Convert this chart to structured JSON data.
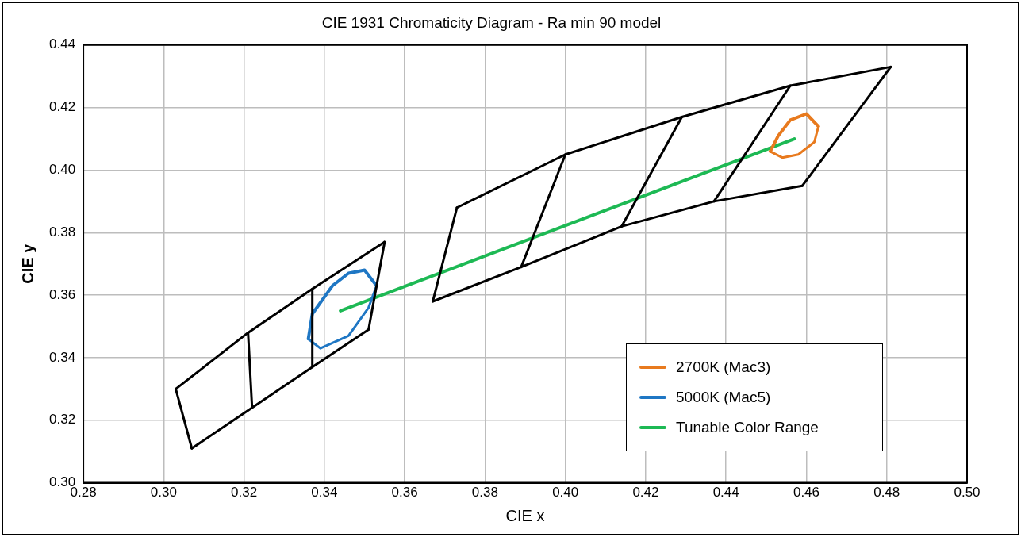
{
  "chart_data": {
    "type": "line",
    "title": "CIE 1931 Chromaticity Diagram - Ra min 90 model",
    "xlabel": "CIE x",
    "ylabel": "CIE y",
    "xlim": [
      0.28,
      0.5
    ],
    "xticks": [
      {
        "value": 0.28,
        "label": "0.28"
      },
      {
        "value": 0.3,
        "label": "0.30"
      },
      {
        "value": 0.32,
        "label": "0.32"
      },
      {
        "value": 0.34,
        "label": "0.34"
      },
      {
        "value": 0.36,
        "label": "0.36"
      },
      {
        "value": 0.38,
        "label": "0.38"
      },
      {
        "value": 0.4,
        "label": "0.40"
      },
      {
        "value": 0.42,
        "label": "0.42"
      },
      {
        "value": 0.44,
        "label": "0.44"
      },
      {
        "value": 0.46,
        "label": "0.46"
      },
      {
        "value": 0.48,
        "label": "0.48"
      },
      {
        "value": 0.5,
        "label": "0.50"
      }
    ],
    "ylim": [
      0.3,
      0.44
    ],
    "yticks": [
      {
        "value": 0.3,
        "label": "0.30"
      },
      {
        "value": 0.32,
        "label": "0.32"
      },
      {
        "value": 0.34,
        "label": "0.34"
      },
      {
        "value": 0.36,
        "label": "0.36"
      },
      {
        "value": 0.38,
        "label": "0.38"
      },
      {
        "value": 0.4,
        "label": "0.40"
      },
      {
        "value": 0.42,
        "label": "0.42"
      },
      {
        "value": 0.44,
        "label": "0.44"
      }
    ],
    "grid": true,
    "legend": "bottom right",
    "marker": "none",
    "line_style": "solid",
    "series": [
      {
        "color": "#000000",
        "x": [
          0.303,
          0.321,
          0.337,
          0.355
        ],
        "values": [
          0.33,
          0.348,
          0.362,
          0.377
        ]
      },
      {
        "color": "#000000",
        "x": [
          0.307,
          0.322,
          0.337,
          0.351
        ],
        "values": [
          0.311,
          0.324,
          0.337,
          0.349
        ]
      },
      {
        "color": "#000000",
        "x": [
          0.303,
          0.307
        ],
        "values": [
          0.33,
          0.311
        ]
      },
      {
        "color": "#000000",
        "x": [
          0.321,
          0.322
        ],
        "values": [
          0.348,
          0.324
        ]
      },
      {
        "color": "#000000",
        "x": [
          0.337,
          0.337
        ],
        "values": [
          0.362,
          0.337
        ]
      },
      {
        "color": "#000000",
        "x": [
          0.355,
          0.351
        ],
        "values": [
          0.377,
          0.349
        ]
      },
      {
        "color": "#000000",
        "x": [
          0.373,
          0.4,
          0.429,
          0.456,
          0.481
        ],
        "values": [
          0.388,
          0.405,
          0.417,
          0.427,
          0.433
        ]
      },
      {
        "color": "#000000",
        "x": [
          0.367,
          0.389,
          0.414,
          0.437,
          0.459
        ],
        "values": [
          0.358,
          0.369,
          0.382,
          0.39,
          0.395
        ]
      },
      {
        "color": "#000000",
        "x": [
          0.373,
          0.367
        ],
        "values": [
          0.388,
          0.358
        ]
      },
      {
        "color": "#000000",
        "x": [
          0.4,
          0.389
        ],
        "values": [
          0.405,
          0.369
        ]
      },
      {
        "color": "#000000",
        "x": [
          0.429,
          0.414
        ],
        "values": [
          0.417,
          0.382
        ]
      },
      {
        "color": "#000000",
        "x": [
          0.456,
          0.437
        ],
        "values": [
          0.427,
          0.39
        ]
      },
      {
        "color": "#000000",
        "x": [
          0.481,
          0.459
        ],
        "values": [
          0.433,
          0.395
        ]
      },
      {
        "name": "2700K (Mac3)",
        "color": "#e87a1e",
        "x": [
          0.451,
          0.453,
          0.456,
          0.46,
          0.463
        ],
        "values": [
          0.406,
          0.411,
          0.416,
          0.418,
          0.414
        ]
      },
      {
        "color": "#e87a1e",
        "x": [
          0.451,
          0.454,
          0.458,
          0.462,
          0.463
        ],
        "values": [
          0.406,
          0.404,
          0.405,
          0.409,
          0.414
        ]
      },
      {
        "name": "5000K (Mac5)",
        "color": "#1f77c4",
        "x": [
          0.336,
          0.337,
          0.342,
          0.346,
          0.35,
          0.353
        ],
        "values": [
          0.346,
          0.354,
          0.363,
          0.367,
          0.368,
          0.363
        ]
      },
      {
        "color": "#1f77c4",
        "x": [
          0.336,
          0.339,
          0.346,
          0.351,
          0.353
        ],
        "values": [
          0.346,
          0.343,
          0.347,
          0.356,
          0.363
        ]
      },
      {
        "name": "Tunable Color Range",
        "color": "#1db954",
        "x": [
          0.344,
          0.457
        ],
        "values": [
          0.355,
          0.41
        ]
      }
    ]
  }
}
